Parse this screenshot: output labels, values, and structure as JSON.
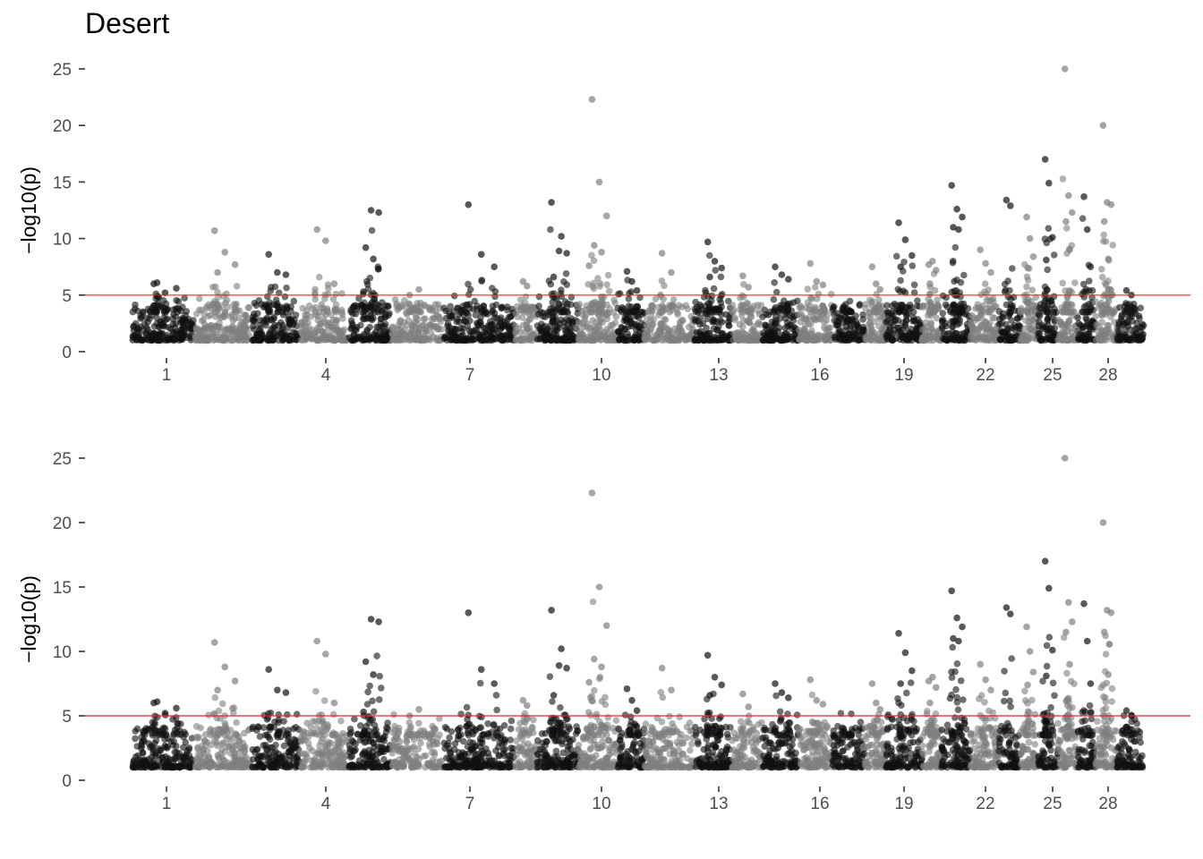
{
  "chart_data": [
    {
      "type": "scatter",
      "title": "Desert",
      "ylabel": "−log10(p)",
      "xlabel": "",
      "ylim": [
        0,
        25
      ],
      "yticks": [
        0,
        5,
        10,
        15,
        20,
        25
      ],
      "x_tick_labels": [
        "1",
        "4",
        "7",
        "10",
        "13",
        "16",
        "19",
        "22",
        "25",
        "28"
      ],
      "threshold": 5,
      "series_colors": [
        "#111111",
        "#7f7f7f"
      ],
      "threshold_color": "#e8262b",
      "grid": false,
      "legend": "none",
      "chromosomes": [
        1,
        2,
        3,
        4,
        5,
        6,
        7,
        8,
        9,
        10,
        11,
        12,
        13,
        14,
        15,
        16,
        17,
        18,
        19,
        20,
        21,
        22,
        23,
        24,
        25,
        26,
        27,
        28,
        29
      ],
      "peaks": [
        {
          "chr": 1,
          "values": [
            6.0,
            5.2,
            5.6,
            6.1
          ]
        },
        {
          "chr": 2,
          "values": [
            10.7,
            8.8,
            7.7,
            7.0
          ]
        },
        {
          "chr": 3,
          "values": [
            8.6,
            7.0,
            6.8
          ]
        },
        {
          "chr": 4,
          "values": [
            10.8,
            9.8,
            6.0
          ]
        },
        {
          "chr": 5,
          "values": [
            5.3,
            12.5,
            12.3,
            9.2,
            8.2
          ]
        },
        {
          "chr": 6,
          "values": [
            5.0,
            5.5
          ]
        },
        {
          "chr": 7,
          "values": [
            13.0,
            8.6,
            7.5
          ]
        },
        {
          "chr": 8,
          "values": [
            6.2,
            5.8
          ]
        },
        {
          "chr": 9,
          "values": [
            13.2,
            8.9,
            8.7,
            6.6,
            10.2
          ]
        },
        {
          "chr": 10,
          "values": [
            22.3,
            15.0,
            12.0,
            9.4,
            8.8,
            7.6
          ]
        },
        {
          "chr": 11,
          "values": [
            7.1,
            6.2,
            5.4
          ]
        },
        {
          "chr": 12,
          "values": [
            8.7,
            7.0
          ]
        },
        {
          "chr": 13,
          "values": [
            9.7,
            8.0,
            7.4,
            6.6
          ]
        },
        {
          "chr": 14,
          "values": [
            6.7,
            5.7
          ]
        },
        {
          "chr": 15,
          "values": [
            7.5,
            6.8,
            6.4
          ]
        },
        {
          "chr": 16,
          "values": [
            7.8,
            6.2,
            5.9
          ]
        },
        {
          "chr": 17,
          "values": [
            4.0,
            3.6
          ]
        },
        {
          "chr": 18,
          "values": [
            7.5,
            6.0,
            5.5
          ]
        },
        {
          "chr": 19,
          "values": [
            11.4,
            9.9,
            8.5,
            7.5
          ]
        },
        {
          "chr": 20,
          "values": [
            7.7,
            8.0,
            7.2,
            6.0
          ]
        },
        {
          "chr": 21,
          "values": [
            14.7,
            12.6,
            11.9,
            11.0,
            10.8
          ]
        },
        {
          "chr": 22,
          "values": [
            9.0,
            7.8,
            7.0
          ]
        },
        {
          "chr": 23,
          "values": [
            13.4,
            12.9
          ]
        },
        {
          "chr": 24,
          "values": [
            11.9,
            10.0,
            8.4,
            7.4
          ]
        },
        {
          "chr": 25,
          "values": [
            17.0,
            14.9,
            10.1,
            8.1
          ]
        },
        {
          "chr": 26,
          "values": [
            25.0,
            13.8,
            12.3,
            11.5,
            9.0
          ]
        },
        {
          "chr": 27,
          "values": [
            13.7,
            10.8,
            7.5
          ]
        },
        {
          "chr": 28,
          "values": [
            20.0,
            13.2,
            13.0,
            11.5,
            8.2
          ]
        },
        {
          "chr": 29,
          "values": [
            5.4,
            5.0
          ]
        }
      ]
    },
    {
      "type": "scatter",
      "title": "",
      "ylabel": "−log10(p)",
      "xlabel": "",
      "ylim": [
        0,
        25
      ],
      "yticks": [
        0,
        5,
        10,
        15,
        20,
        25
      ],
      "x_tick_labels": [
        "1",
        "4",
        "7",
        "10",
        "13",
        "16",
        "19",
        "22",
        "25",
        "28"
      ],
      "threshold": 5,
      "series_colors": [
        "#111111",
        "#7f7f7f"
      ],
      "threshold_color": "#e8262b",
      "grid": false,
      "legend": "none",
      "chromosomes": [
        1,
        2,
        3,
        4,
        5,
        6,
        7,
        8,
        9,
        10,
        11,
        12,
        13,
        14,
        15,
        16,
        17,
        18,
        19,
        20,
        21,
        22,
        23,
        24,
        25,
        26,
        27,
        28,
        29
      ],
      "peaks": [
        {
          "chr": 1,
          "values": [
            6.0,
            5.2,
            5.6,
            6.1
          ]
        },
        {
          "chr": 2,
          "values": [
            10.7,
            8.8,
            7.7,
            7.0
          ]
        },
        {
          "chr": 3,
          "values": [
            8.6,
            7.0,
            6.8
          ]
        },
        {
          "chr": 4,
          "values": [
            10.8,
            9.8,
            6.0
          ]
        },
        {
          "chr": 5,
          "values": [
            5.3,
            12.5,
            12.3,
            9.2,
            8.2
          ]
        },
        {
          "chr": 6,
          "values": [
            5.0,
            5.5
          ]
        },
        {
          "chr": 7,
          "values": [
            13.0,
            8.6,
            7.5
          ]
        },
        {
          "chr": 8,
          "values": [
            6.2,
            5.8
          ]
        },
        {
          "chr": 9,
          "values": [
            13.2,
            8.9,
            8.7,
            6.6,
            10.2
          ]
        },
        {
          "chr": 10,
          "values": [
            22.3,
            15.0,
            12.0,
            9.4,
            8.8,
            7.6
          ]
        },
        {
          "chr": 11,
          "values": [
            7.1,
            6.2,
            5.4
          ]
        },
        {
          "chr": 12,
          "values": [
            8.7,
            7.0
          ]
        },
        {
          "chr": 13,
          "values": [
            9.7,
            8.0,
            7.4,
            6.6
          ]
        },
        {
          "chr": 14,
          "values": [
            6.7,
            5.7
          ]
        },
        {
          "chr": 15,
          "values": [
            7.5,
            6.8,
            6.4
          ]
        },
        {
          "chr": 16,
          "values": [
            7.8,
            6.2,
            5.9
          ]
        },
        {
          "chr": 17,
          "values": [
            4.0,
            3.6
          ]
        },
        {
          "chr": 18,
          "values": [
            7.5,
            6.0,
            5.5
          ]
        },
        {
          "chr": 19,
          "values": [
            11.4,
            9.9,
            8.5,
            7.5
          ]
        },
        {
          "chr": 20,
          "values": [
            7.7,
            8.0,
            7.2,
            6.0
          ]
        },
        {
          "chr": 21,
          "values": [
            14.7,
            12.6,
            11.9,
            11.0,
            10.8
          ]
        },
        {
          "chr": 22,
          "values": [
            9.0,
            7.8,
            7.0
          ]
        },
        {
          "chr": 23,
          "values": [
            13.4,
            12.9
          ]
        },
        {
          "chr": 24,
          "values": [
            11.9,
            10.0,
            8.4,
            7.4
          ]
        },
        {
          "chr": 25,
          "values": [
            17.0,
            14.9,
            10.1,
            8.1
          ]
        },
        {
          "chr": 26,
          "values": [
            25.0,
            13.8,
            12.3,
            11.5,
            9.0
          ]
        },
        {
          "chr": 27,
          "values": [
            13.7,
            10.8,
            7.5
          ]
        },
        {
          "chr": 28,
          "values": [
            20.0,
            13.2,
            13.0,
            11.5,
            8.2
          ]
        },
        {
          "chr": 29,
          "values": [
            5.4,
            5.0
          ]
        }
      ]
    }
  ]
}
